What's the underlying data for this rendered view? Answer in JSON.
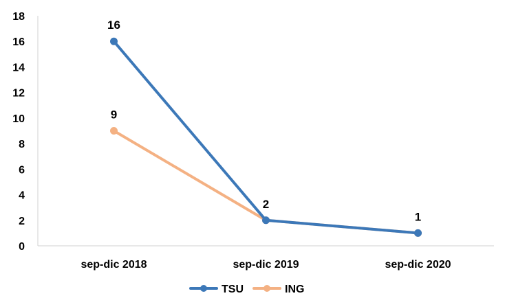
{
  "chart_data": {
    "type": "line",
    "categories": [
      "sep-dic 2018",
      "sep-dic 2019",
      "sep-dic 2020"
    ],
    "series": [
      {
        "name": "TSU",
        "values": [
          16,
          2,
          1
        ],
        "color": "#3C78B8"
      },
      {
        "name": "ING",
        "values": [
          9,
          2,
          1
        ],
        "color": "#F4B183"
      }
    ],
    "data_labels": [
      {
        "text": "16",
        "category_index": 0,
        "value": 16
      },
      {
        "text": "9",
        "category_index": 0,
        "value": 9
      },
      {
        "text": "2",
        "category_index": 1,
        "value": 2
      },
      {
        "text": "1",
        "category_index": 2,
        "value": 1
      }
    ],
    "y_ticks": [
      0,
      2,
      4,
      6,
      8,
      10,
      12,
      14,
      16,
      18
    ],
    "ylim": [
      0,
      18
    ],
    "grid": false,
    "legend_position": "bottom",
    "marker": "circle"
  }
}
